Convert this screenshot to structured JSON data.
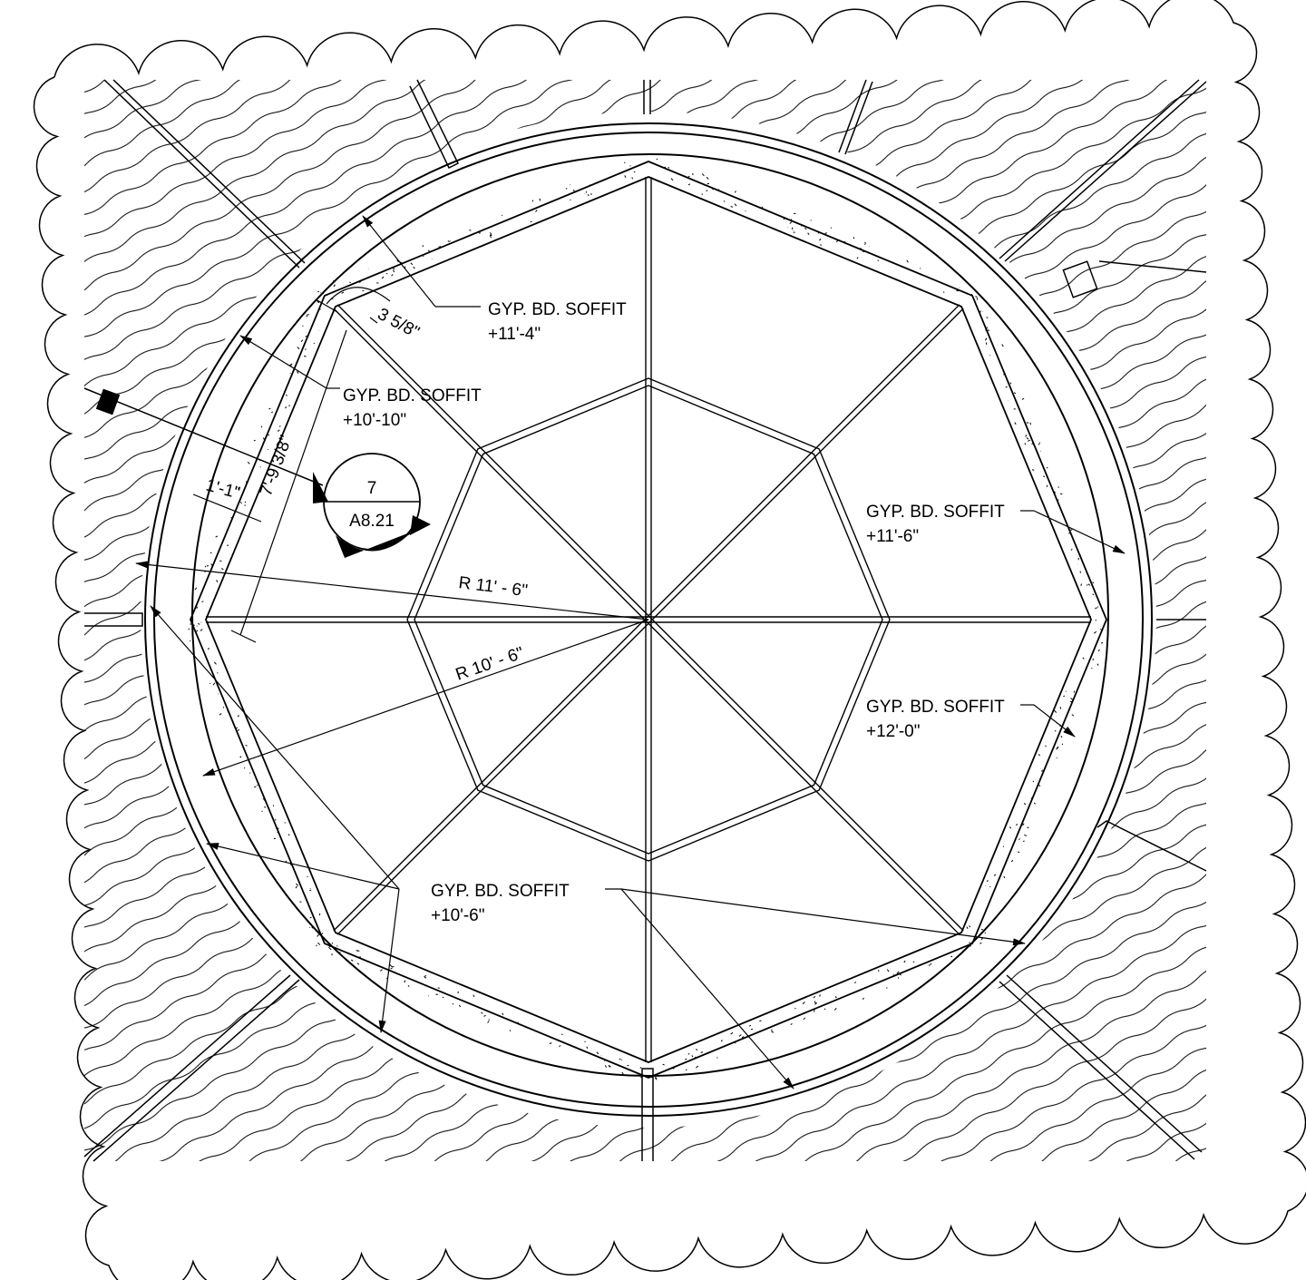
{
  "soffits": [
    {
      "name": "GYP. BD. SOFFIT",
      "elev": "+11'-4\""
    },
    {
      "name": "GYP. BD. SOFFIT",
      "elev": "+10'-10\""
    },
    {
      "name": "GYP. BD. SOFFIT",
      "elev": "+11'-6\""
    },
    {
      "name": "GYP. BD. SOFFIT",
      "elev": "+12'-0\""
    },
    {
      "name": "GYP. BD. SOFFIT",
      "elev": "+10'-6\""
    }
  ],
  "dimensions": {
    "d1": "3 5/8\"",
    "d2": "7'-9 3/8\"",
    "d3": "1'-1\"",
    "r1": "R 11' - 6\"",
    "r2": "R 10' - 6\""
  },
  "section_marker": {
    "number": "7",
    "sheet": "A8.21"
  }
}
